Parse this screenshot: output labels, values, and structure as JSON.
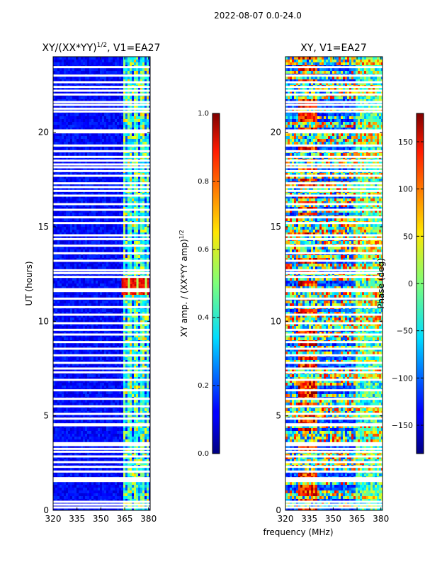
{
  "suptitle": "2022-08-07 0.0-24.0",
  "shared_xlabel": "frequency (MHz)",
  "chart_data": [
    {
      "type": "heatmap",
      "title_prefix": "XY/(XX*YY)",
      "title_sup": "1/2",
      "title_suffix": ", V1=EA27",
      "ylabel": "UT (hours)",
      "xlim": [
        320,
        381
      ],
      "ylim": [
        0,
        24
      ],
      "xticks": [
        320,
        335,
        350,
        365,
        380
      ],
      "yticks": [
        0,
        5,
        10,
        15,
        20
      ],
      "bright_band_mhz": [
        363,
        380
      ],
      "colorbar": {
        "label_main": "XY amp. / (XX*YY amp)",
        "label_sup": "1/2",
        "range": [
          0.0,
          1.0
        ],
        "ticks": [
          "0.0",
          "0.2",
          "0.4",
          "0.6",
          "0.8",
          "1.0"
        ],
        "colormap": "jet"
      }
    },
    {
      "type": "heatmap",
      "title": "XY, V1=EA27",
      "ylabel": "",
      "xlim": [
        320,
        381
      ],
      "ylim": [
        0,
        24
      ],
      "xticks": [
        320,
        335,
        350,
        365,
        380
      ],
      "yticks": [
        0,
        5,
        10,
        15,
        20
      ],
      "bright_band_mhz": [
        363,
        380
      ],
      "colorbar": {
        "label": "Phase (deg)",
        "range": [
          -180,
          180
        ],
        "ticks": [
          150,
          100,
          50,
          0,
          -50,
          -100,
          -150
        ],
        "tick_labels": [
          "150",
          "100",
          "50",
          "0",
          "−50",
          "−100",
          "−150"
        ],
        "colormap": "jet"
      }
    }
  ],
  "flagged_hours": [
    0.15,
    0.3,
    0.45,
    1.55,
    1.6,
    1.65,
    1.7,
    2.05,
    2.3,
    2.55,
    2.85,
    3.1,
    3.25,
    3.45,
    3.55,
    4.5,
    4.55,
    4.85,
    5.1,
    5.5,
    5.9,
    6.35,
    6.9,
    7.3,
    7.5,
    7.8,
    8.2,
    8.55,
    8.9,
    9.3,
    9.55,
    9.9,
    10.35,
    10.75,
    11.2,
    11.6,
    11.7,
    12.35,
    12.55,
    12.7,
    13.2,
    13.6,
    14.0,
    14.35,
    14.55,
    15.2,
    15.5,
    15.9,
    16.2,
    16.65,
    16.9,
    17.1,
    17.3,
    17.7,
    17.95,
    18.15,
    18.3,
    18.5,
    18.7,
    19.0,
    19.3,
    20.0,
    20.1,
    21.1,
    21.25,
    21.45,
    21.6,
    22.0,
    22.2,
    22.4,
    22.65,
    23.0,
    23.45
  ]
}
